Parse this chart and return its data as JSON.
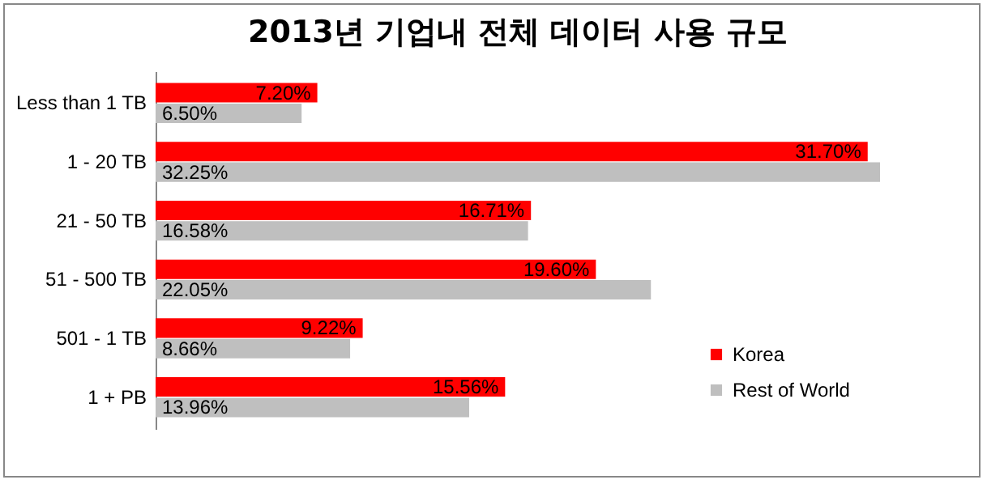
{
  "chart_data": {
    "type": "bar",
    "orientation": "horizontal",
    "title": "2013년 기업내 전체 데이터 사용 규모",
    "categories": [
      "Less than 1 TB",
      "1 - 20 TB",
      "21 - 50 TB",
      "51 - 500 TB",
      "501 - 1 TB",
      "1 + PB"
    ],
    "series": [
      {
        "name": "Korea",
        "color": "#ff0000",
        "values": [
          7.2,
          31.7,
          16.71,
          19.6,
          9.22,
          15.56
        ],
        "value_labels": [
          "7.20%",
          "31.70%",
          "16.71%",
          "19.60%",
          "9.22%",
          "15.56%"
        ]
      },
      {
        "name": "Rest of World",
        "color": "#bfbfbf",
        "values": [
          6.5,
          32.25,
          16.58,
          22.05,
          8.66,
          13.96
        ],
        "value_labels": [
          "6.50%",
          "32.25%",
          "16.58%",
          "22.05%",
          "8.66%",
          "13.96%"
        ]
      }
    ],
    "legend": "bottom right",
    "grid": false
  }
}
